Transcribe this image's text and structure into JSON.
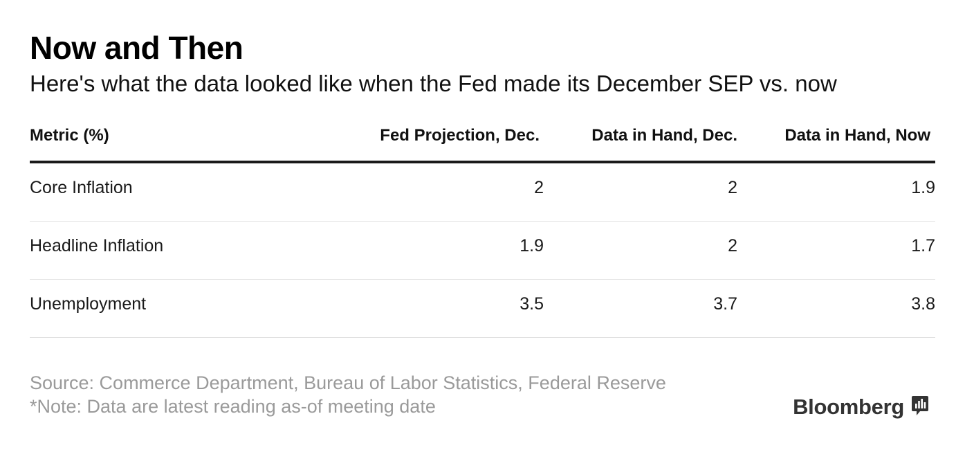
{
  "title": "Now and Then",
  "subtitle": "Here's what the data looked like when the Fed made its December SEP vs. now",
  "chart_data": {
    "type": "table",
    "columns": [
      "Metric (%)",
      "Fed Projection, Dec.",
      "Data in Hand, Dec.",
      "Data in Hand, Now"
    ],
    "rows": [
      [
        "Core Inflation",
        "2",
        "2",
        "1.9"
      ],
      [
        "Headline Inflation",
        "1.9",
        "2",
        "1.7"
      ],
      [
        "Unemployment",
        "3.5",
        "3.7",
        "3.8"
      ]
    ]
  },
  "footer": {
    "source": "Source: Commerce Department, Bureau of Labor Statistics, Federal Reserve",
    "note": "*Note: Data are latest reading as-of meeting date"
  },
  "brand": {
    "name": "Bloomberg",
    "icon": "bloomberg-chart-icon"
  }
}
